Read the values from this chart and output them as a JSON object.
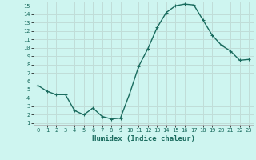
{
  "x": [
    0,
    1,
    2,
    3,
    4,
    5,
    6,
    7,
    8,
    9,
    10,
    11,
    12,
    13,
    14,
    15,
    16,
    17,
    18,
    19,
    20,
    21,
    22,
    23
  ],
  "y": [
    5.5,
    4.8,
    4.4,
    4.4,
    2.5,
    2.0,
    2.8,
    1.8,
    1.5,
    1.6,
    4.5,
    7.8,
    9.9,
    12.4,
    14.2,
    15.0,
    15.2,
    15.1,
    13.3,
    11.5,
    10.3,
    9.6,
    8.5,
    8.6
  ],
  "line_color": "#1a6b5e",
  "marker": "+",
  "marker_size": 3,
  "bg_color": "#cef5f0",
  "grid_color": "#c0ddd8",
  "xlabel": "Humidex (Indice chaleur)",
  "xlim": [
    -0.5,
    23.5
  ],
  "ylim": [
    0.8,
    15.5
  ],
  "yticks": [
    1,
    2,
    3,
    4,
    5,
    6,
    7,
    8,
    9,
    10,
    11,
    12,
    13,
    14,
    15
  ],
  "xticks": [
    0,
    1,
    2,
    3,
    4,
    5,
    6,
    7,
    8,
    9,
    10,
    11,
    12,
    13,
    14,
    15,
    16,
    17,
    18,
    19,
    20,
    21,
    22,
    23
  ]
}
